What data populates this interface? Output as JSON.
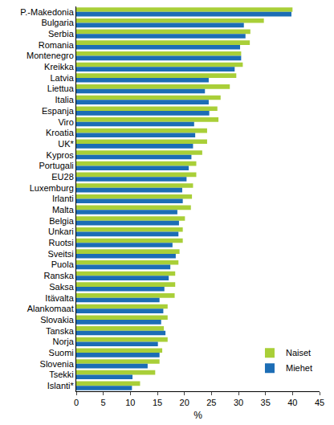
{
  "chart_data": {
    "type": "bar",
    "orientation": "horizontal",
    "categories": [
      "P.-Makedonia",
      "Bulgaria",
      "Serbia",
      "Romania",
      "Montenegro",
      "Kreikka",
      "Latvia",
      "Liettua",
      "Italia",
      "Espanja",
      "Viro",
      "Kroatia",
      "UK*",
      "Kypros",
      "Portugali",
      "EU28",
      "Luxemburg",
      "Irlanti",
      "Malta",
      "Belgia",
      "Unkari",
      "Ruotsi",
      "Sveitsi",
      "Puola",
      "Ranska",
      "Saksa",
      "Itävalta",
      "Alankomaat",
      "Slovakia",
      "Tanska",
      "Norja",
      "Suomi",
      "Slovenia",
      "Tsekki",
      "Islanti*"
    ],
    "series": [
      {
        "name": "Naiset",
        "color": "#a9cf38",
        "values": [
          40.0,
          34.7,
          32.2,
          32.1,
          30.5,
          30.8,
          29.6,
          28.4,
          26.7,
          26.1,
          26.3,
          24.2,
          24.2,
          23.3,
          22.2,
          22.2,
          21.6,
          21.4,
          21.2,
          20.1,
          19.7,
          19.7,
          19.1,
          18.9,
          18.3,
          18.3,
          18.2,
          16.9,
          16.9,
          16.2,
          16.9,
          15.9,
          15.4,
          14.6,
          11.8
        ]
      },
      {
        "name": "Miehet",
        "color": "#1c6db5",
        "values": [
          39.8,
          31.0,
          31.3,
          30.3,
          30.5,
          29.3,
          24.5,
          23.8,
          24.5,
          24.6,
          21.8,
          22.0,
          21.6,
          21.3,
          20.8,
          20.4,
          19.6,
          19.7,
          18.7,
          19.0,
          18.9,
          17.8,
          18.4,
          17.4,
          17.1,
          16.3,
          15.4,
          16.1,
          15.7,
          16.5,
          15.1,
          15.4,
          13.2,
          10.4,
          10.3
        ]
      }
    ],
    "xlabel": "%",
    "xlim": [
      0,
      45
    ],
    "xticks": [
      0,
      5,
      10,
      15,
      20,
      25,
      30,
      35,
      40,
      45
    ],
    "grid": false,
    "legend": "lower right"
  }
}
